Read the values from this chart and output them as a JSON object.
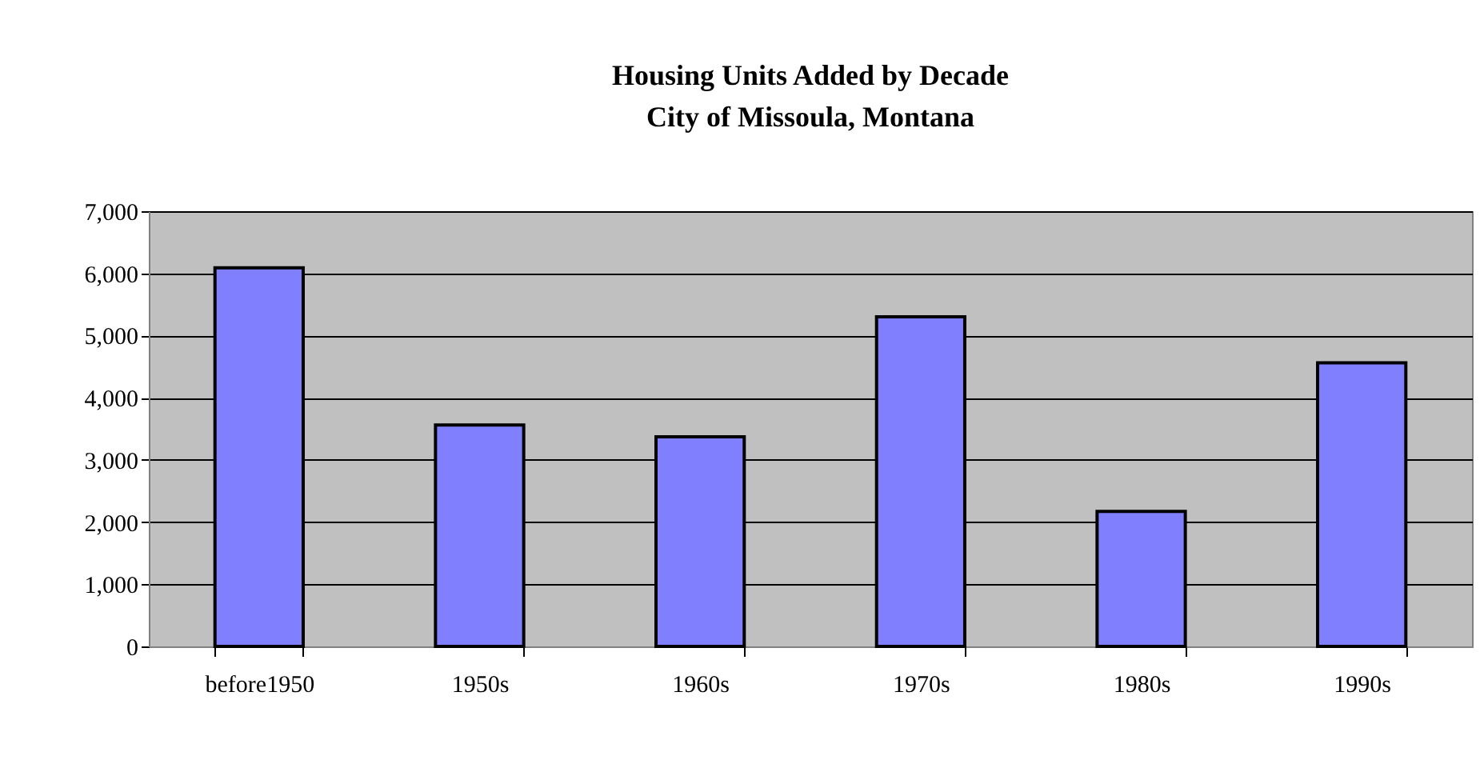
{
  "chart_data": {
    "type": "bar",
    "title": [
      "Housing Units Added by Decade",
      "City of Missoula, Montana"
    ],
    "categories": [
      "before1950",
      "1950s",
      "1960s",
      "1970s",
      "1980s",
      "1990s"
    ],
    "values": [
      6090,
      3560,
      3370,
      5300,
      2170,
      4560
    ],
    "color": "#8080ff",
    "ylim": [
      0,
      7000
    ],
    "yticks": [
      {
        "value": 0,
        "label": "0"
      },
      {
        "value": 1000,
        "label": "1,000"
      },
      {
        "value": 2000,
        "label": "2,000"
      },
      {
        "value": 3000,
        "label": "3,000"
      },
      {
        "value": 4000,
        "label": "4,000"
      },
      {
        "value": 5000,
        "label": "5,000"
      },
      {
        "value": 6000,
        "label": "6,000"
      },
      {
        "value": 7000,
        "label": "7,000"
      }
    ],
    "grid": "y"
  }
}
